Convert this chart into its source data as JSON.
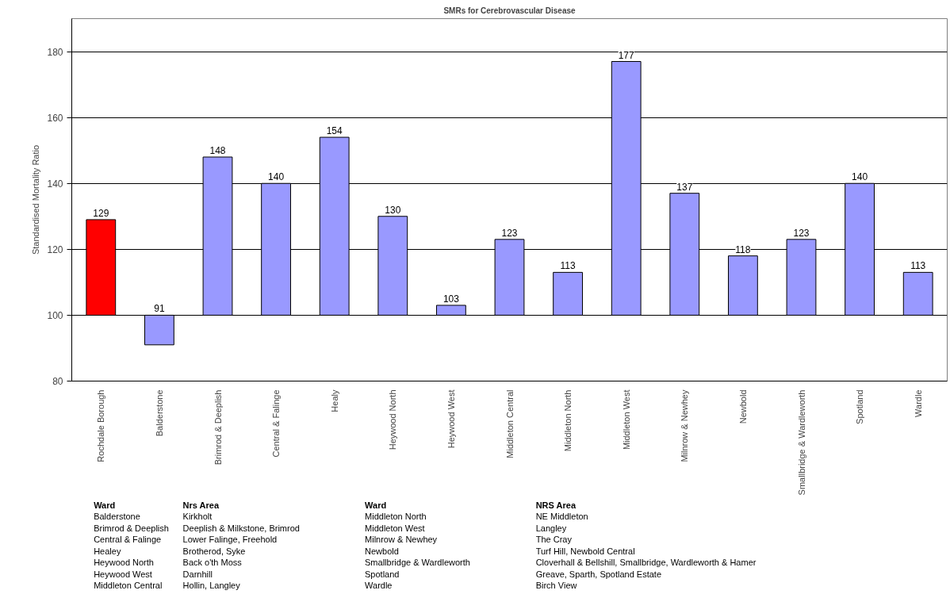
{
  "chart_data": {
    "type": "bar",
    "title": "SMRs for Cerebrovascular Disease",
    "ylabel": "Standardised Mortality Ratio",
    "categories": [
      "Rochdale Borough",
      "Balderstone",
      "Brimrod & Deeplish",
      "Central & Falinge",
      "Healy",
      "Heywood North",
      "Heywood West",
      "Middleton Central",
      "Middleton North",
      "Middleton West",
      "Milnrow & Newhey",
      "Newbold",
      "Smallbridge & Wardleworth",
      "Spotland",
      "Wardle"
    ],
    "base": [
      100,
      100,
      100,
      100,
      100,
      100,
      100,
      100,
      100,
      100,
      100,
      100,
      100,
      100,
      100
    ],
    "values": [
      29,
      -9,
      48,
      40,
      54,
      30,
      3,
      23,
      13,
      77,
      37,
      18,
      23,
      40,
      13
    ],
    "value_labels": [
      "129",
      "91",
      "148",
      "140",
      "154",
      "130",
      "103",
      "123",
      "113",
      "177",
      "137",
      "118",
      "123",
      "140",
      "113"
    ],
    "colors": [
      "#ff0000",
      "#9999ff",
      "#9999ff",
      "#9999ff",
      "#9999ff",
      "#9999ff",
      "#9999ff",
      "#9999ff",
      "#9999ff",
      "#9999ff",
      "#9999ff",
      "#9999ff",
      "#9999ff",
      "#9999ff",
      "#9999ff"
    ],
    "ylim": [
      80,
      190
    ],
    "yticks": [
      80,
      100,
      120,
      140,
      160,
      180
    ],
    "grid": "y",
    "annotations": [
      "Ward",
      "Nrs Area",
      "Ward",
      "NRS Area",
      "Balderstone",
      "Kirkholt",
      "Middleton North",
      "NE Middleton",
      "Brimrod & Deeplish",
      "Deeplish & Milkstone, Brimrod",
      "Middleton West",
      "Langley",
      "Central & Falinge",
      "Lower Falinge, Freehold",
      "Milnrow & Newhey",
      "The Cray",
      "Healey",
      "Brotherod, Syke",
      "Newbold",
      "Turf Hill, Newbold Central",
      "Heywood North",
      "Back o'th Moss",
      "Smallbridge & Wardleworth",
      "Cloverhall & Bellshill, Smallbridge, Wardleworth & Hamer",
      "Heywood West",
      "Darnhill",
      "Spotland",
      "Greave, Sparth, Spotland Estate",
      "Middleton Central",
      "Hollin, Langley",
      "Wardle",
      "Birch View"
    ]
  }
}
